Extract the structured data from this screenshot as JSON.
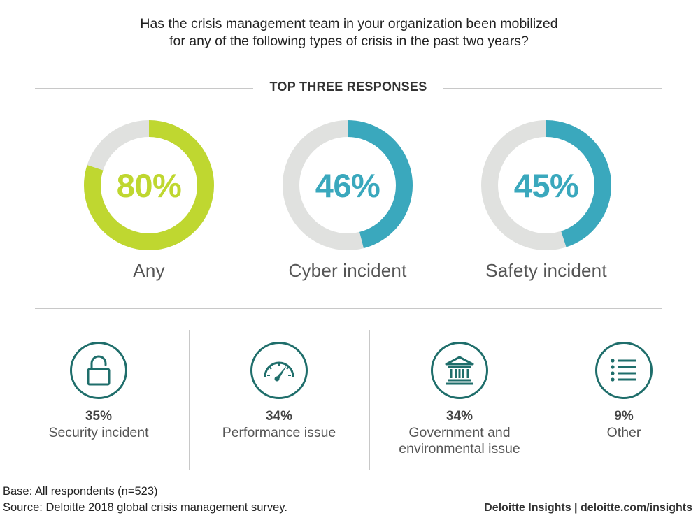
{
  "question": {
    "line1": "Has the crisis management team in your organization been mobilized",
    "line2": "for any of the following types of crisis in the past two years?"
  },
  "section_title": "TOP THREE RESPONSES",
  "colors": {
    "lime": "#bfd730",
    "teal": "#3aa8bd",
    "ring_track": "#e0e1df",
    "icon_dark_teal": "#1f6e6b"
  },
  "chart_data": {
    "type": "donut",
    "series": [
      {
        "label": "Any",
        "value": 80,
        "display": "80%",
        "color": "#bfd730"
      },
      {
        "label": "Cyber incident",
        "value": 46,
        "display": "46%",
        "color": "#3aa8bd"
      },
      {
        "label": "Safety incident",
        "value": 45,
        "display": "45%",
        "color": "#3aa8bd"
      }
    ],
    "unit": "%",
    "max": 100
  },
  "other_responses": [
    {
      "value": "35%",
      "label_lines": [
        "Security incident"
      ],
      "icon": "padlock-icon"
    },
    {
      "value": "34%",
      "label_lines": [
        "Performance issue"
      ],
      "icon": "speedometer-icon"
    },
    {
      "value": "34%",
      "label_lines": [
        "Government and",
        "environmental issue"
      ],
      "icon": "government-building-icon"
    },
    {
      "value": "9%",
      "label_lines": [
        "Other"
      ],
      "icon": "list-icon"
    }
  ],
  "footer": {
    "base": "Base: All respondents (n=523)",
    "source": "Source: Deloitte 2018 global crisis management survey.",
    "brand": "Deloitte Insights | deloitte.com/insights"
  }
}
